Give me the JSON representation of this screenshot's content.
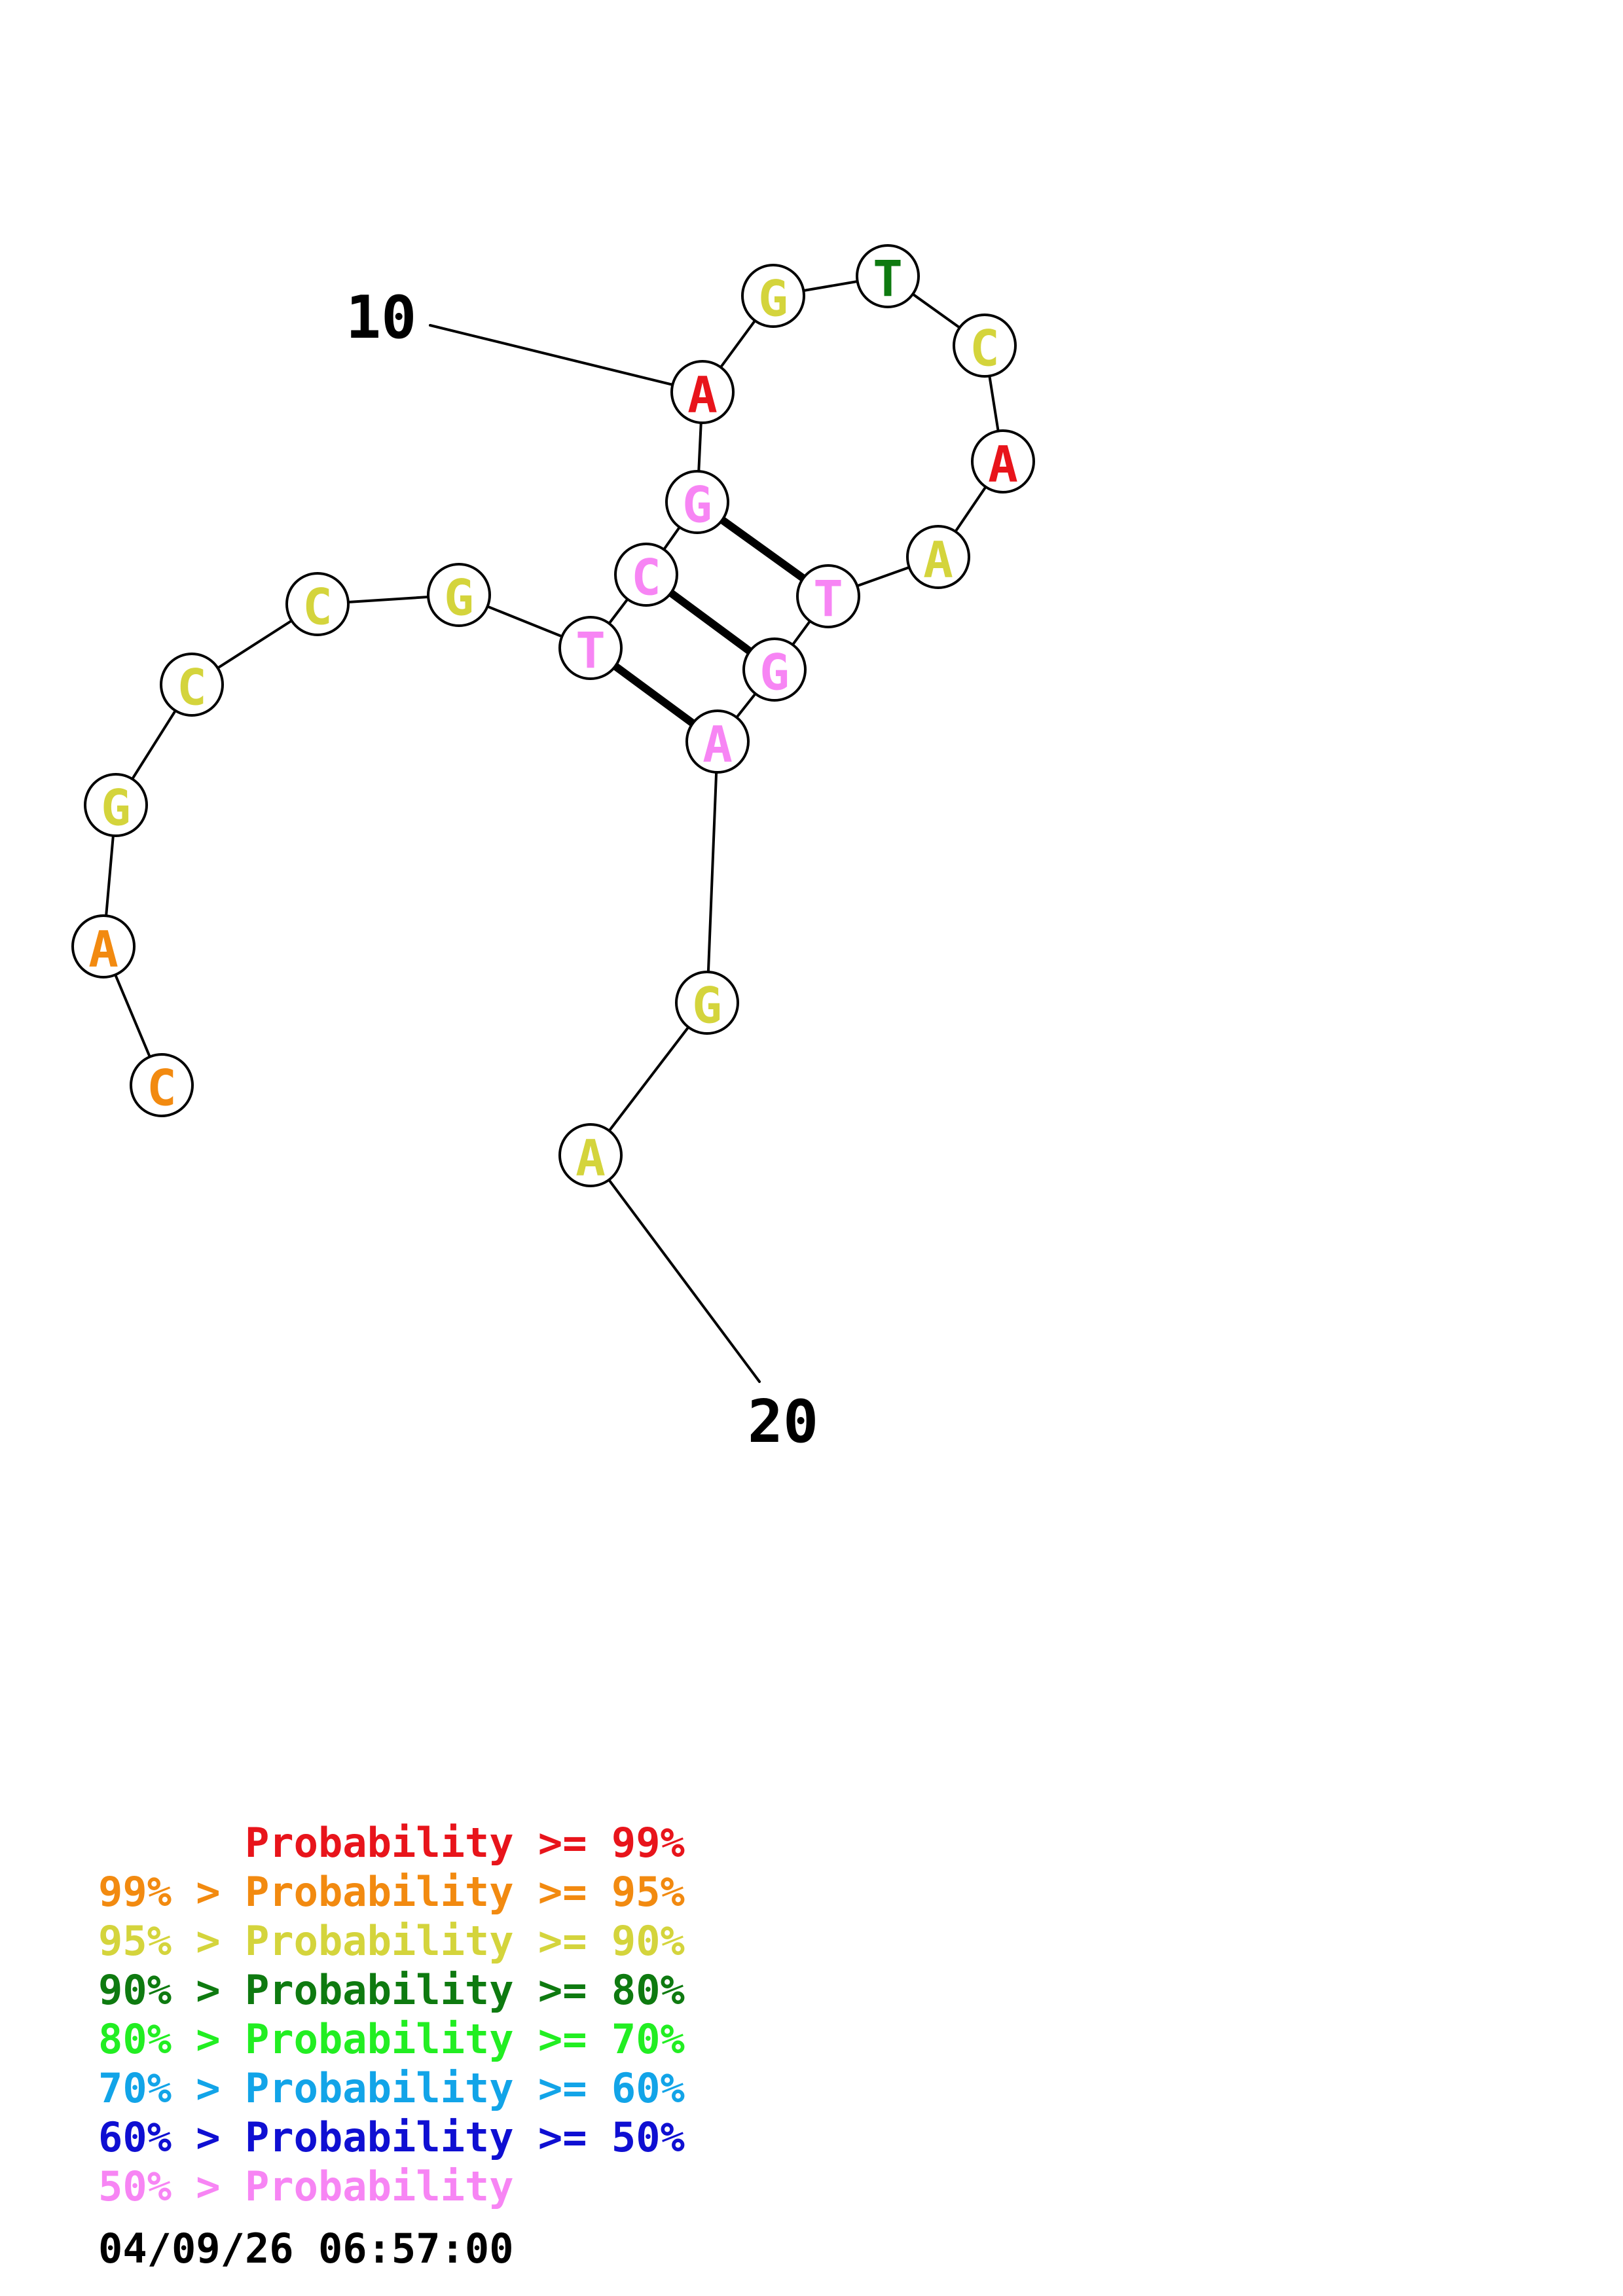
{
  "structure": {
    "sequence": [
      "C",
      "A",
      "G",
      "C",
      "C",
      "G",
      "T",
      "C",
      "G",
      "A",
      "G",
      "T",
      "C",
      "A",
      "A",
      "T",
      "G",
      "A",
      "G",
      "A"
    ],
    "probability_class": [
      1,
      1,
      2,
      2,
      2,
      2,
      7,
      7,
      7,
      0,
      2,
      3,
      2,
      0,
      2,
      7,
      7,
      7,
      2,
      2
    ],
    "pairs": [
      [
        7,
        18
      ],
      [
        8,
        17
      ],
      [
        9,
        16
      ]
    ],
    "position_labels": [
      {
        "index": 10,
        "text": "10"
      },
      {
        "index": 20,
        "text": "20"
      }
    ]
  },
  "palette": [
    "#e8141b",
    "#f28a10",
    "#d4d43c",
    "#0e7a10",
    "#22ee22",
    "#12a4e8",
    "#0f0fd2",
    "#f785f4"
  ],
  "legend": {
    "rows": [
      {
        "prefix": "",
        "label": "Probability",
        "suffix": ">= 99%",
        "color": "#e8141b"
      },
      {
        "prefix": "99% >",
        "label": "Probability",
        "suffix": ">= 95%",
        "color": "#f28a10"
      },
      {
        "prefix": "95% >",
        "label": "Probability",
        "suffix": ">= 90%",
        "color": "#d4d43c"
      },
      {
        "prefix": "90% >",
        "label": "Probability",
        "suffix": ">= 80%",
        "color": "#0e7a10"
      },
      {
        "prefix": "80% >",
        "label": "Probability",
        "suffix": ">= 70%",
        "color": "#22ee22"
      },
      {
        "prefix": "70% >",
        "label": "Probability",
        "suffix": ">= 60%",
        "color": "#12a4e8"
      },
      {
        "prefix": "60% >",
        "label": "Probability",
        "suffix": ">= 50%",
        "color": "#0f0fd2"
      },
      {
        "prefix": "50% >",
        "label": "Probability",
        "suffix": "",
        "color": "#f785f4"
      }
    ]
  },
  "timestamp": "04/09/26 06:57:00"
}
